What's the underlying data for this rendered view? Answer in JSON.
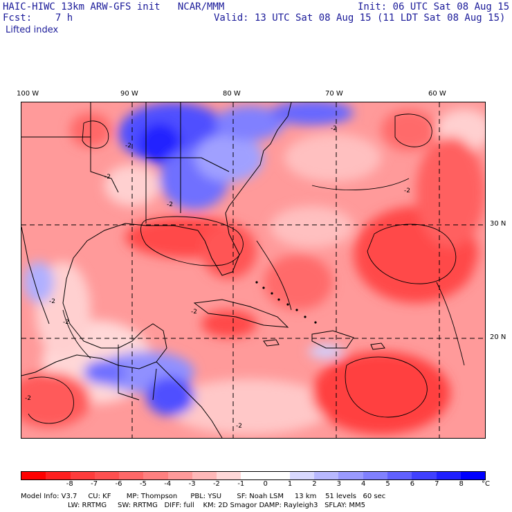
{
  "header": {
    "model_line": "HAIC-HIWC 13km ARW-GFS init   NCAR/MMM",
    "fcst_line": "Fcst:    7 h",
    "init_line": "Init: 06 UTC Sat 08 Aug 15",
    "valid_line": "Valid: 13 UTC Sat 08 Aug 15 (11 LDT Sat 08 Aug 15)",
    "field_name": "Lifted index"
  },
  "map": {
    "longitude_labels": [
      "100 W",
      "90 W",
      "80 W",
      "70 W",
      "60 W"
    ],
    "latitude_labels": [
      "30 N",
      "20 N"
    ],
    "contour_label": "-2",
    "colors": {
      "warm_deep": "#ff0000",
      "warm_mid": "#ff5a5a",
      "warm_light": "#ff9a9a",
      "warm_pale": "#ffd0d0",
      "cool_pale": "#d0d0ff",
      "cool_light": "#a0a0ff",
      "cool_mid": "#5a5aff",
      "cool_deep": "#1010ff",
      "grid": "#000000"
    }
  },
  "colorbar": {
    "tick_labels": [
      "-8",
      "-7",
      "-6",
      "-5",
      "-4",
      "-3",
      "-2",
      "-1",
      "0",
      "1",
      "2",
      "3",
      "4",
      "5",
      "6",
      "7",
      "8"
    ],
    "unit": "°C",
    "segment_colors": [
      "#ff0000",
      "#ff2020",
      "#ff3c3c",
      "#ff5050",
      "#ff6868",
      "#ff8080",
      "#ff9a9a",
      "#ffb8b8",
      "#ffd8d8",
      "#ffffff",
      "#ffffff",
      "#d8d8ff",
      "#b8b8ff",
      "#9a9aff",
      "#8080ff",
      "#6060ff",
      "#4040ff",
      "#2020ff",
      "#0000ff"
    ]
  },
  "footer": {
    "line1": "Model Info: V3.7     CU: KF       MP: Thompson      PBL: YSU       SF: Noah LSM     13 km    51 levels   60 sec",
    "line2": "LW: RRTMG     SW: RRTMG   DIFF: full    KM: 2D Smagor DAMP: Rayleigh3   SFLAY: MM5"
  }
}
